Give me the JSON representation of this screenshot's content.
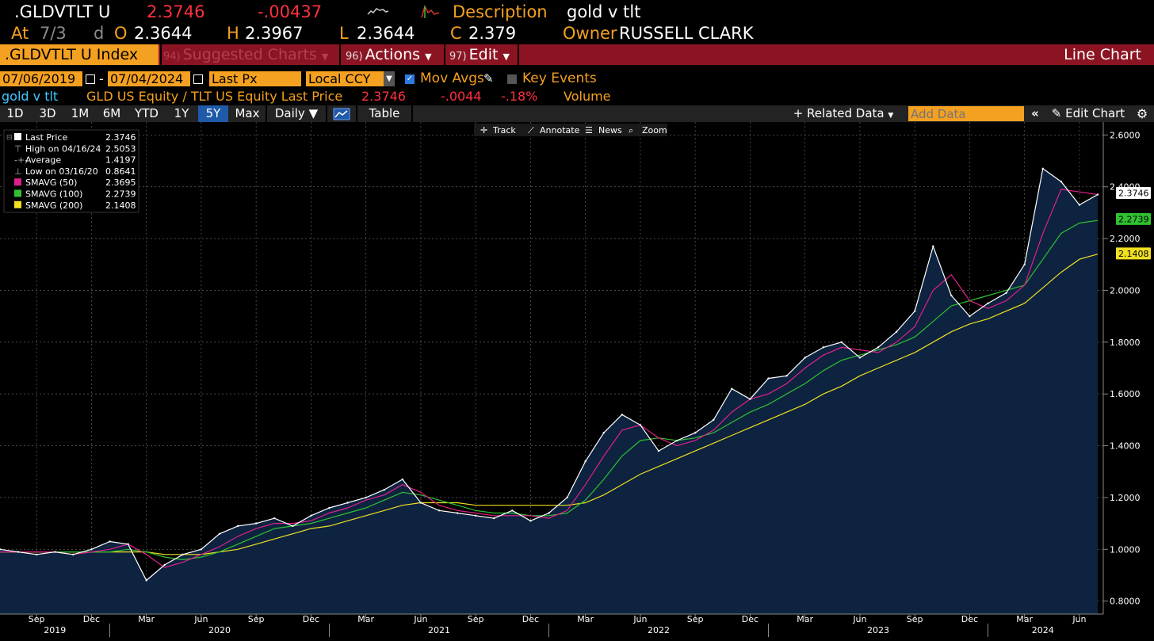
{
  "header": {
    "ticker": ".GLDVTLT U",
    "last": "2.3746",
    "change": "-.00437",
    "desc_label": "Description",
    "desc_value": "gold v tlt",
    "at_label": "At",
    "at_value": "7/3",
    "d_label": "d",
    "o_label": "O",
    "o_value": "2.3644",
    "h_label": "H",
    "h_value": "2.3967",
    "l_label": "L",
    "l_value": "2.3644",
    "c_label": "C",
    "c_value": "2.379",
    "owner_label": "Owner",
    "owner_value": "RUSSELL CLARK"
  },
  "menubar": {
    "index": ".GLDVTLT U Index",
    "suggest_num": "94)",
    "suggest": "Suggested Charts",
    "actions_num": "96)",
    "actions": "Actions",
    "edit_num": "97)",
    "edit": "Edit",
    "chart_type": "Line Chart"
  },
  "params": {
    "start_date": "07/06/2019",
    "dash": "-",
    "end_date": "07/04/2024",
    "field": "Last Px",
    "currency": "Local CCY",
    "mov_avgs": "Mov Avgs",
    "key_events": "Key Events"
  },
  "series_line": {
    "name": "gold v tlt",
    "desc": "GLD US Equity / TLT US Equity Last Price",
    "last": "2.3746",
    "chg": "-.0044",
    "pct": "-.18%",
    "volume": "Volume"
  },
  "toolbar": {
    "periods": [
      "1D",
      "3D",
      "1M",
      "6M",
      "YTD",
      "1Y",
      "5Y",
      "Max"
    ],
    "selected": "5Y",
    "freq": "Daily",
    "table": "Table",
    "related": "Related Data",
    "add_data_placeholder": "Add Data",
    "edit_chart": "Edit Chart"
  },
  "chart_tools": [
    "Track",
    "Annotate",
    "News",
    "Zoom"
  ],
  "colors": {
    "price": "#ffffff",
    "sma50": "#e0208a",
    "sma100": "#30c030",
    "sma200": "#f0e020",
    "area": "#0d2340",
    "amber": "#f4a020",
    "menubar": "#8c1422"
  },
  "chart_data": {
    "type": "line",
    "title": "gold v tlt",
    "ylim": [
      0.75,
      2.65
    ],
    "yticks": [
      "0.8000",
      "1.0000",
      "1.2000",
      "1.4000",
      "1.6000",
      "1.8000",
      "2.0000",
      "2.2000",
      "2.4000",
      "2.6000"
    ],
    "x_month_ticks": [
      "Sep",
      "Dec",
      "Mar",
      "Jun",
      "Sep",
      "Dec",
      "Mar",
      "Jun",
      "Sep",
      "Dec",
      "Mar",
      "Jun",
      "Sep",
      "Dec",
      "Mar",
      "Jun",
      "Sep",
      "Dec",
      "Mar",
      "Jun"
    ],
    "x_year_labels": [
      "2019",
      "2020",
      "2021",
      "2022",
      "2023",
      "2024"
    ],
    "legend": [
      {
        "label": "Last Price",
        "value": "2.3746",
        "marker": "square",
        "color": "#ffffff"
      },
      {
        "label": "High on 04/16/24",
        "value": "2.5053",
        "marker": "high"
      },
      {
        "label": "Average",
        "value": "1.4197",
        "marker": "avg"
      },
      {
        "label": "Low on 03/16/20",
        "value": "0.8641",
        "marker": "low"
      },
      {
        "label": "SMAVG (50)",
        "value": "2.3695",
        "marker": "square",
        "color": "#e0208a"
      },
      {
        "label": "SMAVG (100)",
        "value": "2.2739",
        "marker": "square",
        "color": "#30c030"
      },
      {
        "label": "SMAVG (200)",
        "value": "2.1408",
        "marker": "square",
        "color": "#f0e020"
      }
    ],
    "last_tags": [
      {
        "value": "2.3746",
        "bg": "#ffffff",
        "fg": "#000000"
      },
      {
        "value": "2.2739",
        "bg": "#30c030",
        "fg": "#000000"
      },
      {
        "value": "2.1408",
        "bg": "#f0e020",
        "fg": "#000000"
      }
    ],
    "x": [
      "2019-07",
      "2019-08",
      "2019-09",
      "2019-10",
      "2019-11",
      "2019-12",
      "2020-01",
      "2020-02",
      "2020-03",
      "2020-04",
      "2020-05",
      "2020-06",
      "2020-07",
      "2020-08",
      "2020-09",
      "2020-10",
      "2020-11",
      "2020-12",
      "2021-01",
      "2021-02",
      "2021-03",
      "2021-04",
      "2021-05",
      "2021-06",
      "2021-07",
      "2021-08",
      "2021-09",
      "2021-10",
      "2021-11",
      "2021-12",
      "2022-01",
      "2022-02",
      "2022-03",
      "2022-04",
      "2022-05",
      "2022-06",
      "2022-07",
      "2022-08",
      "2022-09",
      "2022-10",
      "2022-11",
      "2022-12",
      "2023-01",
      "2023-02",
      "2023-03",
      "2023-04",
      "2023-05",
      "2023-06",
      "2023-07",
      "2023-08",
      "2023-09",
      "2023-10",
      "2023-11",
      "2023-12",
      "2024-01",
      "2024-02",
      "2024-03",
      "2024-04",
      "2024-05",
      "2024-06",
      "2024-07"
    ],
    "series": [
      {
        "name": "Last Price",
        "values": [
          1.0,
          0.99,
          0.98,
          0.99,
          0.98,
          1.0,
          1.03,
          1.02,
          0.88,
          0.94,
          0.98,
          1.0,
          1.06,
          1.09,
          1.1,
          1.12,
          1.09,
          1.13,
          1.16,
          1.18,
          1.2,
          1.23,
          1.27,
          1.18,
          1.15,
          1.14,
          1.13,
          1.12,
          1.15,
          1.11,
          1.14,
          1.2,
          1.34,
          1.45,
          1.52,
          1.48,
          1.38,
          1.42,
          1.45,
          1.5,
          1.62,
          1.58,
          1.66,
          1.67,
          1.74,
          1.78,
          1.8,
          1.74,
          1.78,
          1.84,
          1.92,
          2.17,
          1.98,
          1.9,
          1.95,
          1.99,
          2.1,
          2.47,
          2.42,
          2.33,
          2.37
        ]
      },
      {
        "name": "SMAVG (50)",
        "values": [
          0.99,
          0.99,
          0.99,
          0.99,
          0.98,
          0.99,
          1.0,
          1.02,
          0.98,
          0.93,
          0.95,
          0.98,
          1.01,
          1.05,
          1.08,
          1.1,
          1.1,
          1.11,
          1.14,
          1.16,
          1.19,
          1.21,
          1.25,
          1.22,
          1.17,
          1.15,
          1.14,
          1.13,
          1.13,
          1.13,
          1.12,
          1.15,
          1.25,
          1.36,
          1.46,
          1.48,
          1.43,
          1.4,
          1.42,
          1.46,
          1.53,
          1.58,
          1.6,
          1.64,
          1.7,
          1.75,
          1.78,
          1.77,
          1.76,
          1.8,
          1.86,
          2.0,
          2.06,
          1.96,
          1.93,
          1.96,
          2.02,
          2.22,
          2.39,
          2.38,
          2.37
        ]
      },
      {
        "name": "SMAVG (100)",
        "values": [
          0.99,
          0.99,
          0.99,
          0.99,
          0.99,
          0.99,
          0.99,
          1.0,
          0.99,
          0.97,
          0.96,
          0.97,
          0.99,
          1.02,
          1.05,
          1.08,
          1.09,
          1.1,
          1.12,
          1.14,
          1.16,
          1.19,
          1.22,
          1.21,
          1.19,
          1.17,
          1.15,
          1.14,
          1.14,
          1.13,
          1.13,
          1.14,
          1.19,
          1.27,
          1.36,
          1.42,
          1.43,
          1.42,
          1.43,
          1.45,
          1.49,
          1.53,
          1.56,
          1.6,
          1.64,
          1.69,
          1.73,
          1.75,
          1.77,
          1.79,
          1.82,
          1.88,
          1.94,
          1.96,
          1.98,
          2.0,
          2.02,
          2.12,
          2.22,
          2.26,
          2.27
        ]
      },
      {
        "name": "SMAVG (200)",
        "values": [
          0.99,
          0.99,
          0.99,
          0.99,
          0.99,
          0.99,
          0.99,
          0.99,
          0.99,
          0.98,
          0.98,
          0.98,
          0.99,
          1.0,
          1.02,
          1.04,
          1.06,
          1.08,
          1.09,
          1.11,
          1.13,
          1.15,
          1.17,
          1.18,
          1.18,
          1.18,
          1.17,
          1.17,
          1.17,
          1.17,
          1.17,
          1.17,
          1.18,
          1.21,
          1.25,
          1.29,
          1.32,
          1.35,
          1.38,
          1.41,
          1.44,
          1.47,
          1.5,
          1.53,
          1.56,
          1.6,
          1.63,
          1.67,
          1.7,
          1.73,
          1.76,
          1.8,
          1.84,
          1.87,
          1.89,
          1.92,
          1.95,
          2.01,
          2.07,
          2.12,
          2.14
        ]
      }
    ]
  }
}
